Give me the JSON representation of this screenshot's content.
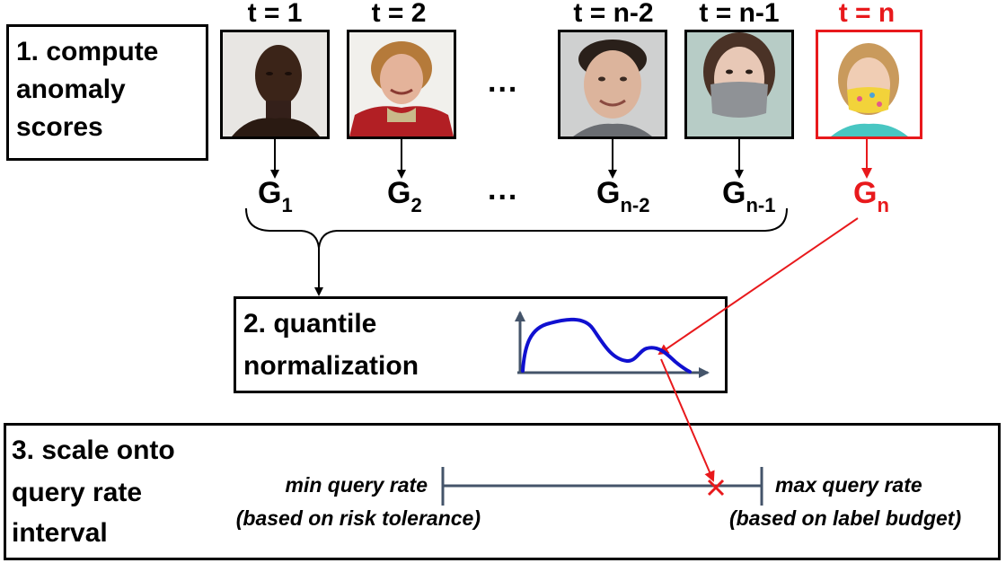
{
  "steps": {
    "step1_lines": [
      "1. compute",
      "anomaly",
      "scores"
    ],
    "step2_lines": [
      "2. quantile",
      "normalization"
    ],
    "step3_lines": [
      "3. scale onto",
      "query rate",
      "interval"
    ]
  },
  "timesteps": [
    {
      "label": "t = 1",
      "score": "G",
      "sub": "1",
      "image": "portrait-man-dark-skin"
    },
    {
      "label": "t = 2",
      "score": "G",
      "sub": "2",
      "image": "portrait-woman-red-jacket"
    },
    {
      "label": "t = n-2",
      "score": "G",
      "sub": "n-2",
      "image": "portrait-young-man-smiling"
    },
    {
      "label": "t = n-1",
      "score": "G",
      "sub": "n-1",
      "image": "portrait-woman-gray-mask"
    },
    {
      "label": "t = n",
      "score": "G",
      "sub": "n",
      "image": "portrait-girl-yellow-mask"
    }
  ],
  "ellipsis": "...",
  "interval": {
    "min_label": "min query rate",
    "min_note": "(based on risk tolerance)",
    "max_label": "max query rate",
    "max_note": "(based on label budget)"
  },
  "colors": {
    "highlight": "#e8191c",
    "curve": "#1010d0",
    "axis": "#44546a"
  }
}
